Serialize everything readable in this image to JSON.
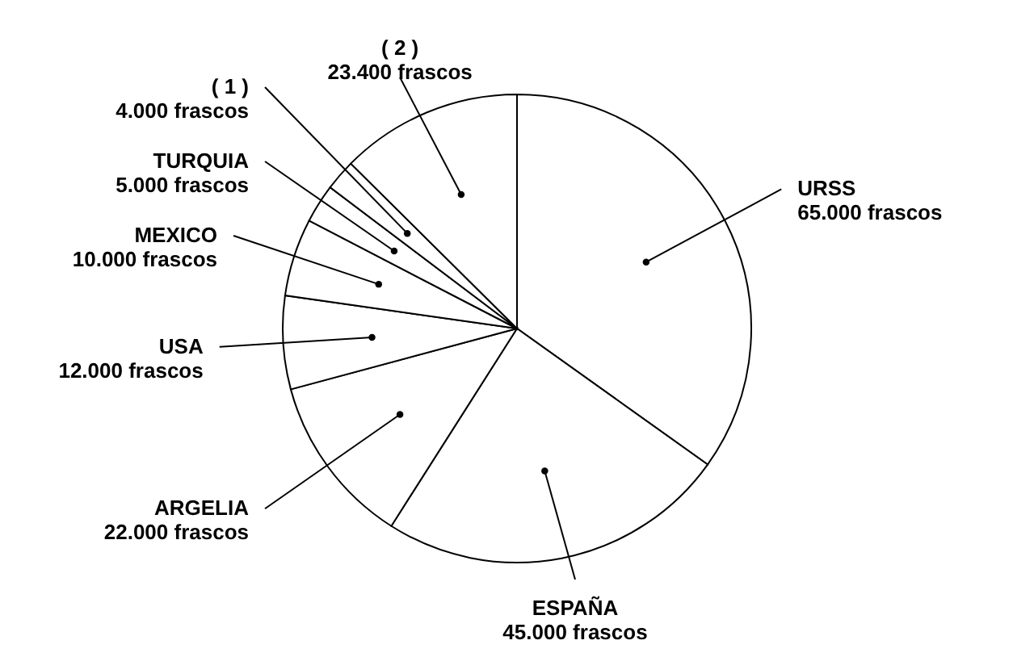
{
  "chart_data": {
    "type": "pie",
    "categories": [
      "URSS",
      "ESPAÑA",
      "ARGELIA",
      "USA",
      "MEXICO",
      "TURQUIA",
      "( 1 )",
      "( 2 )"
    ],
    "values": [
      65000,
      45000,
      22000,
      12000,
      10000,
      5000,
      4000,
      23400
    ],
    "value_labels": [
      "65.000 frascos",
      "45.000 frascos",
      "22.000 frascos",
      "12.000 frascos",
      "10.000 frascos",
      "5.000 frascos",
      "4.000 frascos",
      "23.400 frascos"
    ],
    "colors": [
      "#ffffff",
      "#ffffff",
      "#ffffff",
      "#ffffff",
      "#ffffff",
      "#ffffff",
      "#ffffff",
      "#ffffff"
    ]
  }
}
